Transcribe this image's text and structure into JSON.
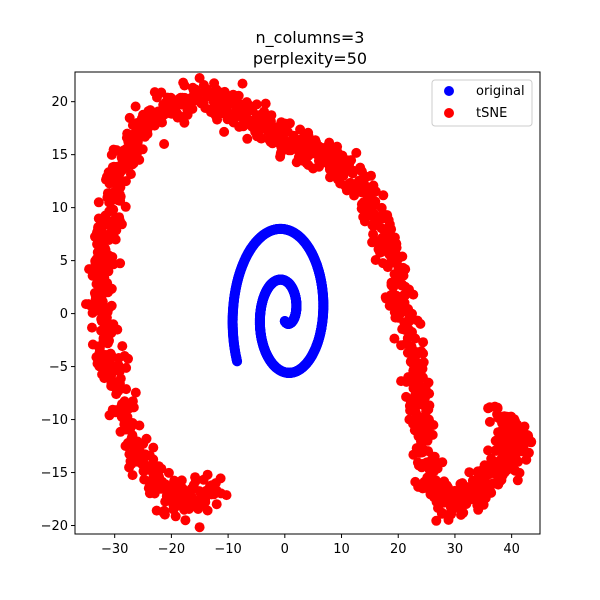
{
  "chart_data": {
    "type": "scatter",
    "title_lines": [
      "n_columns=3",
      "perplexity=50"
    ],
    "xlabel": "",
    "ylabel": "",
    "xlim": [
      -37,
      45
    ],
    "ylim": [
      -20.8,
      22.8
    ],
    "xticks": [
      -30,
      -20,
      -10,
      0,
      10,
      20,
      30,
      40
    ],
    "yticks": [
      -20,
      -15,
      -10,
      -5,
      0,
      5,
      10,
      15,
      20
    ],
    "grid": false,
    "legend_position": "top-right",
    "series": [
      {
        "name": "original",
        "color": "#0000ff",
        "shape": "archimedean-spiral",
        "spiral": {
          "center": [
            0,
            0
          ],
          "theta_start": 4.71,
          "theta_end": 16.2,
          "a": 0.1,
          "b": 0.77
        }
      },
      {
        "name": "tSNE",
        "color": "#ff0000",
        "shape": "curved-band",
        "path": [
          [
            -12,
            -16.5
          ],
          [
            -17,
            -17.8
          ],
          [
            -22,
            -16.5
          ],
          [
            -27,
            -12
          ],
          [
            -30,
            -6
          ],
          [
            -32.5,
            0
          ],
          [
            -32,
            6
          ],
          [
            -30,
            12
          ],
          [
            -27,
            16.5
          ],
          [
            -21,
            19.5
          ],
          [
            -14,
            20.5
          ],
          [
            -7,
            18.5
          ],
          [
            0,
            16.5
          ],
          [
            6,
            15.3
          ],
          [
            11,
            13.5
          ],
          [
            15,
            10.5
          ],
          [
            18,
            6.5
          ],
          [
            20,
            2.5
          ],
          [
            21.5,
            -1
          ],
          [
            23,
            -5
          ],
          [
            24,
            -9
          ],
          [
            24.5,
            -13
          ],
          [
            26,
            -16.5
          ],
          [
            29,
            -18
          ],
          [
            33,
            -17
          ],
          [
            37,
            -15
          ],
          [
            40,
            -13
          ],
          [
            42,
            -12
          ],
          [
            40,
            -11
          ],
          [
            37,
            -9.5
          ]
        ],
        "spread": 1.1,
        "points": 1400
      }
    ]
  }
}
